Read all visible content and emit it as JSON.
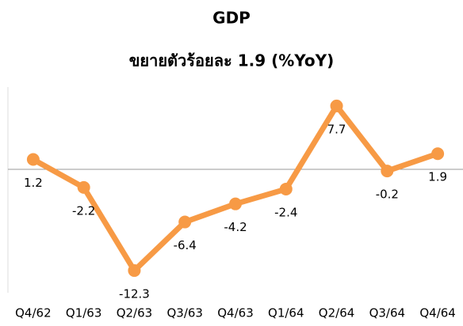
{
  "chart_data": {
    "type": "line",
    "title": "GDP",
    "subtitle": "ขยายตัวร้อยละ 1.9 (%YoY)",
    "categories": [
      "Q4/62",
      "Q1/63",
      "Q2/63",
      "Q3/63",
      "Q4/63",
      "Q1/64",
      "Q2/64",
      "Q3/64",
      "Q4/64"
    ],
    "values": [
      1.2,
      -2.2,
      -12.3,
      -6.4,
      -4.2,
      -2.4,
      7.7,
      -0.2,
      1.9
    ],
    "color": "#f79a45",
    "ylim": [
      -15,
      10
    ]
  }
}
